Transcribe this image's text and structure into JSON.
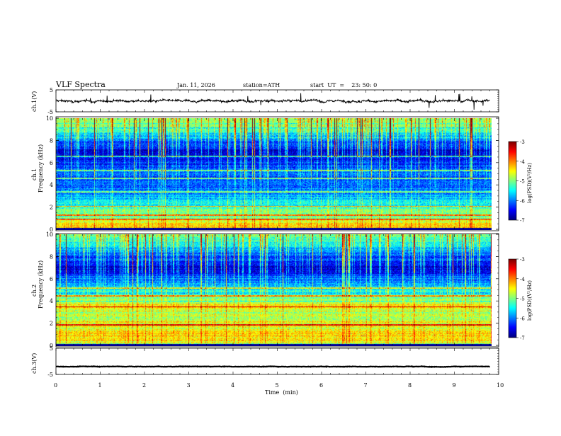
{
  "header": {
    "title": "VLF  Spectra",
    "date": "Jan. 11, 2026",
    "station": "station=ATH",
    "start_ut": "start  UT  =    23: 50: 0"
  },
  "chart_data": [
    {
      "type": "line",
      "name": "ch1-waveform",
      "ylabel": "ch.1(V)",
      "ylim": [
        -5,
        5
      ],
      "yticks": [
        "5",
        "-5"
      ],
      "xlim": [
        0,
        10
      ],
      "baseline_v": 0.0,
      "noise_amplitude_v": 1.0
    },
    {
      "type": "heatmap",
      "name": "ch1-spectrogram",
      "ylabel": "Frequency  (kHz)",
      "ylabel_prefix": "ch.1",
      "ylim": [
        0,
        10
      ],
      "yticks": [
        "0",
        "2",
        "4",
        "6",
        "8",
        "10"
      ],
      "xlim": [
        0,
        9.8
      ],
      "colorbar": {
        "label": "log(PSD)(V²/Hz)",
        "range": [
          -7,
          -3
        ],
        "ticks": [
          "-3",
          "-4",
          "-5",
          "-6",
          "-7"
        ]
      },
      "band_profile_khz_psd": [
        [
          0.0,
          -6.0
        ],
        [
          0.2,
          -4.0
        ],
        [
          0.6,
          -4.6
        ],
        [
          1.0,
          -5.0
        ],
        [
          2.0,
          -5.2
        ],
        [
          3.0,
          -5.9
        ],
        [
          4.0,
          -6.2
        ],
        [
          5.0,
          -6.1
        ],
        [
          6.0,
          -6.3
        ],
        [
          7.0,
          -6.8
        ],
        [
          8.0,
          -6.0
        ],
        [
          9.0,
          -5.3
        ],
        [
          10.0,
          -4.8
        ]
      ],
      "tone_lines_khz": [
        0.9,
        1.3,
        2.1,
        3.4,
        4.6,
        5.3,
        6.6
      ]
    },
    {
      "type": "heatmap",
      "name": "ch2-spectrogram",
      "ylabel": "Frequency  (kHz)",
      "ylabel_prefix": "ch.2",
      "ylim": [
        0,
        10
      ],
      "yticks": [
        "0",
        "2",
        "4",
        "6",
        "8",
        "10"
      ],
      "xlim": [
        0,
        9.8
      ],
      "colorbar": {
        "label": "log(PSD)(V²/Hz)",
        "range": [
          -7,
          -3
        ],
        "ticks": [
          "-3",
          "-4",
          "-5",
          "-6",
          "-7"
        ]
      },
      "band_profile_khz_psd": [
        [
          0.0,
          -5.5
        ],
        [
          0.3,
          -4.6
        ],
        [
          1.0,
          -4.4
        ],
        [
          2.0,
          -4.7
        ],
        [
          3.0,
          -4.9
        ],
        [
          3.5,
          -4.3
        ],
        [
          4.0,
          -5.0
        ],
        [
          5.0,
          -5.6
        ],
        [
          6.0,
          -6.1
        ],
        [
          7.0,
          -6.7
        ],
        [
          8.0,
          -6.2
        ],
        [
          9.0,
          -5.6
        ],
        [
          10.0,
          -5.0
        ]
      ],
      "tone_lines_khz": [
        1.9,
        3.5,
        4.5,
        5.2
      ]
    },
    {
      "type": "line",
      "name": "ch3-waveform",
      "ylabel": "ch.3(V)",
      "ylim": [
        -5,
        5
      ],
      "yticks": [
        "5",
        "-5"
      ],
      "xlim": [
        0,
        10
      ],
      "baseline_v": -2.0,
      "noise_amplitude_v": 0.15
    }
  ],
  "xaxis": {
    "label": "Time  (min)",
    "ticks": [
      "0",
      "1",
      "2",
      "3",
      "4",
      "5",
      "6",
      "7",
      "8",
      "9",
      "10"
    ]
  },
  "colorbar_labels": {
    "top": "log(PSD)(V²/Hz)",
    "bottom": "log(PSD)(V²/Hz)"
  }
}
